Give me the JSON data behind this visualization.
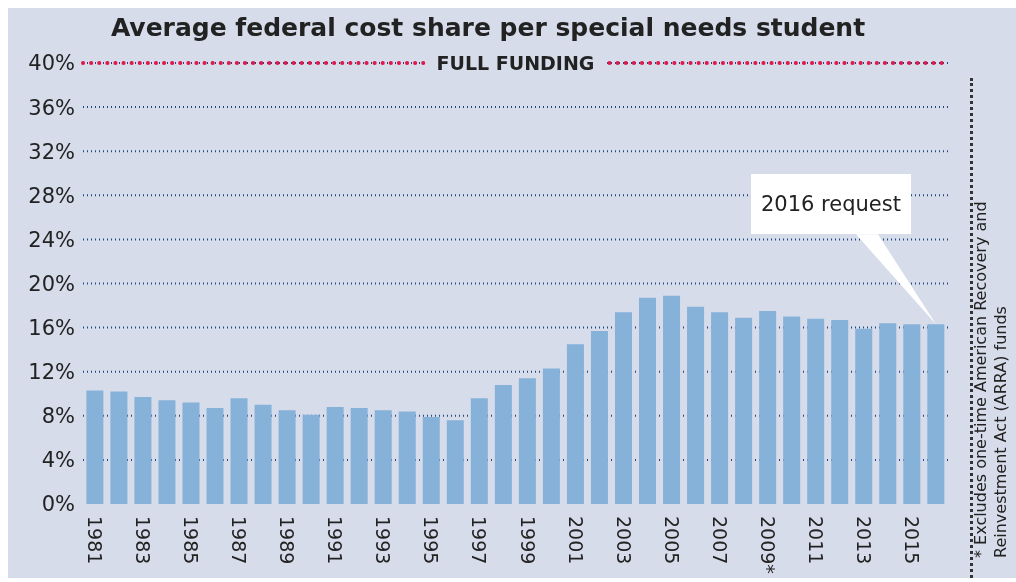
{
  "chart_data": {
    "type": "bar",
    "title": "Average federal cost share per special needs student",
    "categories": [
      "1981",
      null,
      "1983",
      null,
      "1985",
      null,
      "1987",
      null,
      "1989",
      null,
      "1991",
      null,
      "1993",
      null,
      "1995",
      null,
      "1997",
      null,
      "1999",
      null,
      "2001",
      null,
      "2003",
      null,
      "2005",
      null,
      "2007",
      null,
      "2009*",
      null,
      "2011",
      null,
      "2013",
      null,
      "2015",
      null
    ],
    "values": [
      10.3,
      10.2,
      9.7,
      9.4,
      9.2,
      8.7,
      9.6,
      9.0,
      8.5,
      8.1,
      8.8,
      8.7,
      8.5,
      8.4,
      7.9,
      7.6,
      9.6,
      10.8,
      11.4,
      12.3,
      14.5,
      15.7,
      17.4,
      18.7,
      18.9,
      17.9,
      17.4,
      16.9,
      17.5,
      17.0,
      16.8,
      16.7,
      15.9,
      16.4,
      16.3,
      16.3
    ],
    "color": "#86b1d9",
    "ylim": [
      0,
      40
    ],
    "yticks": [
      {
        "value": 0,
        "label": "0%"
      },
      {
        "value": 4,
        "label": "4%"
      },
      {
        "value": 8,
        "label": "8%"
      },
      {
        "value": 12,
        "label": "12%"
      },
      {
        "value": 16,
        "label": "16%"
      },
      {
        "value": 20,
        "label": "20%"
      },
      {
        "value": 24,
        "label": "24%"
      },
      {
        "value": 28,
        "label": "28%"
      },
      {
        "value": 32,
        "label": "32%"
      },
      {
        "value": 36,
        "label": "36%"
      },
      {
        "value": 40,
        "label": "40%"
      }
    ],
    "grid": "y",
    "ref_lines": [
      {
        "axis": "y",
        "value": 40,
        "label": "FULL FUNDING",
        "color": "#e0174a",
        "line_style": "dotted"
      }
    ],
    "annotations": [
      "2016 request",
      "* Excludes one-time American Recovery and Reinvestment Act (ARRA) funds"
    ]
  }
}
